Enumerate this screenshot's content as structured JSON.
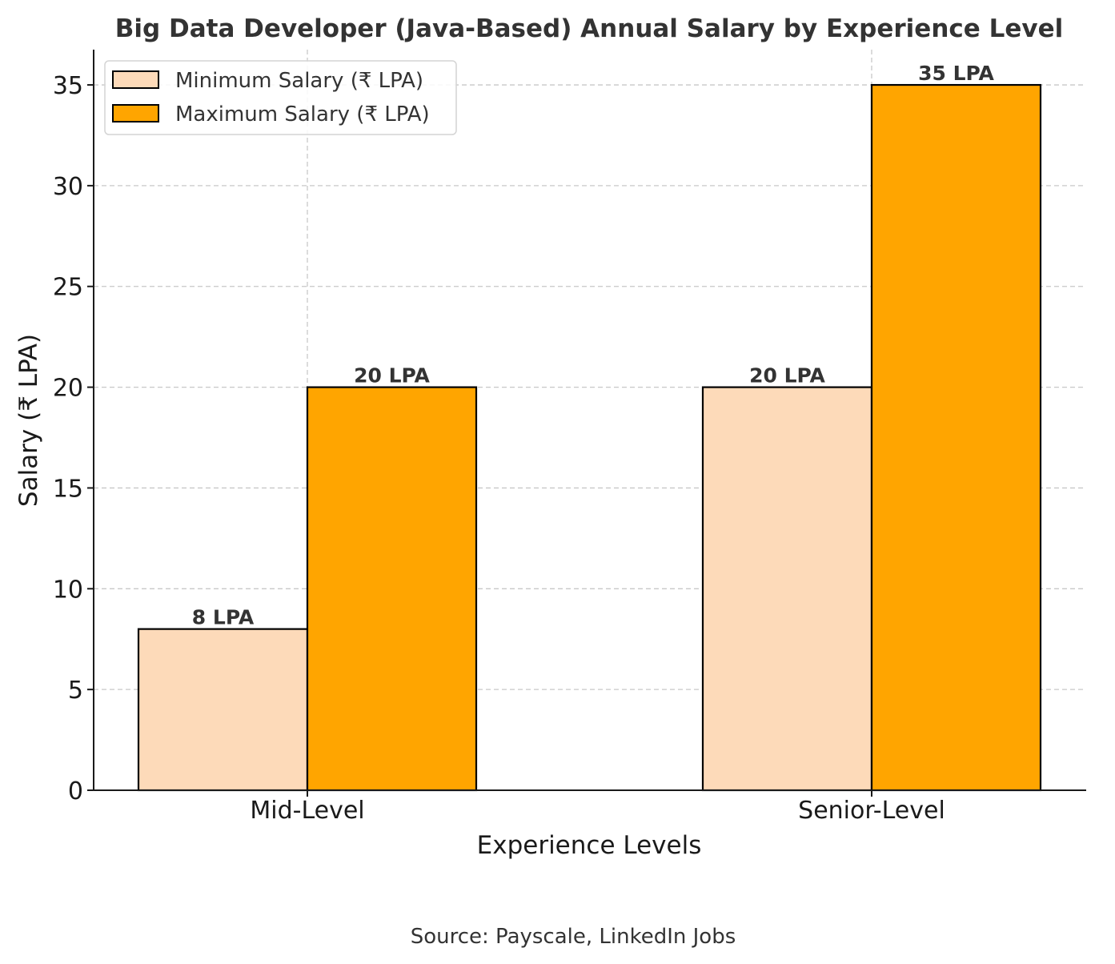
{
  "chart_data": {
    "type": "bar",
    "title": "Big Data Developer (Java-Based) Annual Salary by Experience Level",
    "xlabel": "Experience Levels",
    "ylabel": "Salary (₹ LPA)",
    "categories": [
      "Mid-Level",
      "Senior-Level"
    ],
    "series": [
      {
        "name": "Minimum Salary (₹ LPA)",
        "values": [
          8,
          20
        ],
        "data_labels": [
          "8 LPA",
          "20 LPA"
        ],
        "color": "#FDDAB9"
      },
      {
        "name": "Maximum Salary (₹ LPA)",
        "values": [
          20,
          35
        ],
        "data_labels": [
          "20 LPA",
          "35 LPA"
        ],
        "color": "#FFA500"
      }
    ],
    "ylim": [
      0,
      36.75
    ],
    "yticks": [
      0,
      5,
      10,
      15,
      20,
      25,
      30,
      35
    ],
    "grid": true,
    "legend_position": "top-left",
    "source": "Source: Payscale, LinkedIn Jobs"
  }
}
